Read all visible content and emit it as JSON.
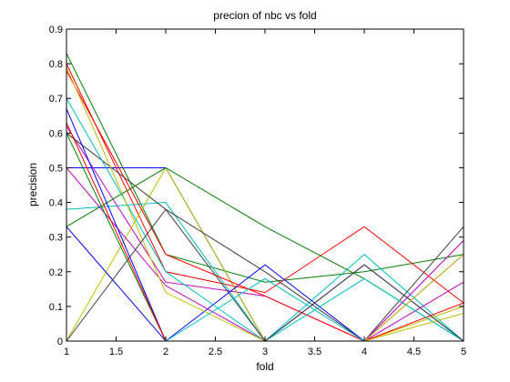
{
  "chart_data": {
    "type": "line",
    "title": "precion of nbc vs fold",
    "xlabel": "fold",
    "ylabel": "precision",
    "xlim": [
      1,
      5
    ],
    "ylim": [
      0,
      0.9
    ],
    "xticks": [
      "1",
      "1.5",
      "2",
      "2.5",
      "3",
      "3.5",
      "4",
      "4.5",
      "5"
    ],
    "yticks": [
      "0",
      "0.1",
      "0.2",
      "0.3",
      "0.4",
      "0.5",
      "0.6",
      "0.7",
      "0.8",
      "0.9"
    ],
    "grid": false,
    "x": [
      1,
      2,
      3,
      4,
      5
    ],
    "series": [
      {
        "color": "#0000ff",
        "values": [
          0.5,
          0.5,
          0.0,
          0.22,
          0.0
        ]
      },
      {
        "color": "#008000",
        "values": [
          0.83,
          0.25,
          0.17,
          0.2,
          0.25
        ]
      },
      {
        "color": "#ff0000",
        "values": [
          0.8,
          0.2,
          0.14,
          0.33,
          0.11
        ]
      },
      {
        "color": "#00bfbf",
        "values": [
          0.38,
          0.4,
          0.0,
          0.25,
          0.0
        ]
      },
      {
        "color": "#bf00bf",
        "values": [
          0.62,
          0.17,
          0.13,
          0.0,
          0.17
        ]
      },
      {
        "color": "#bfbf00",
        "values": [
          0.0,
          0.5,
          0.0,
          0.0,
          0.1
        ]
      },
      {
        "color": "#404040",
        "values": [
          0.6,
          0.38,
          0.2,
          0.0,
          0.33
        ]
      },
      {
        "color": "#0000ff",
        "values": [
          0.33,
          0.0,
          0.22,
          0.0,
          0.0
        ]
      },
      {
        "color": "#008000",
        "values": [
          0.33,
          0.5,
          0.33,
          0.18,
          0.0
        ]
      },
      {
        "color": "#ff0000",
        "values": [
          0.78,
          0.25,
          0.13,
          0.0,
          0.11
        ]
      },
      {
        "color": "#00bfbf",
        "values": [
          0.7,
          0.2,
          0.0,
          0.18,
          0.0
        ]
      },
      {
        "color": "#bf00bf",
        "values": [
          0.5,
          0.16,
          0.0,
          0.0,
          0.29
        ]
      },
      {
        "color": "#bfbf00",
        "values": [
          0.79,
          0.14,
          0.0,
          0.0,
          0.08
        ]
      },
      {
        "color": "#404040",
        "values": [
          0.0,
          0.38,
          0.0,
          0.22,
          0.0
        ]
      },
      {
        "color": "#0000ff",
        "values": [
          0.67,
          0.0,
          0.0,
          0.0,
          0.0
        ]
      },
      {
        "color": "#008000",
        "values": [
          0.6,
          0.0,
          0.0,
          0.0,
          0.0
        ]
      },
      {
        "color": "#ff0000",
        "values": [
          0.63,
          0.0,
          0.0,
          0.0,
          0.0
        ]
      },
      {
        "color": "#bf00bf",
        "values": [
          0.0,
          0.0,
          0.0,
          0.0,
          0.25
        ]
      },
      {
        "color": "#bfbf00",
        "values": [
          0.0,
          0.0,
          0.0,
          0.0,
          0.25
        ]
      },
      {
        "color": "#00bfbf",
        "values": [
          0.0,
          0.0,
          0.18,
          0.0,
          0.0
        ]
      }
    ]
  }
}
